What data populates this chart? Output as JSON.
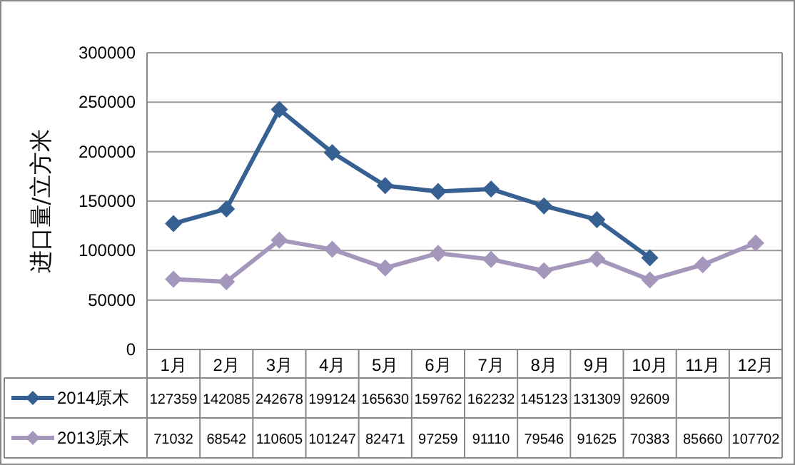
{
  "chart_data": {
    "type": "line",
    "ylabel": "进口量/立方米",
    "categories": [
      "1月",
      "2月",
      "3月",
      "4月",
      "5月",
      "6月",
      "7月",
      "8月",
      "9月",
      "10月",
      "11月",
      "12月"
    ],
    "series": [
      {
        "name": "2014原木",
        "color": "#376092",
        "values": [
          127359,
          142085,
          242678,
          199124,
          165630,
          159762,
          162232,
          145123,
          131309,
          92609,
          null,
          null
        ]
      },
      {
        "name": "2013原木",
        "color": "#a497bb",
        "values": [
          71032,
          68542,
          110605,
          101247,
          82471,
          97259,
          91110,
          79546,
          91625,
          70383,
          85660,
          107702
        ]
      }
    ],
    "ylim": [
      0,
      300000
    ],
    "yticks": [
      0,
      50000,
      100000,
      150000,
      200000,
      250000,
      300000
    ],
    "grid": "y",
    "marker": "diamond",
    "line_style": "solid",
    "data_labels": true,
    "legend": "bottom"
  }
}
